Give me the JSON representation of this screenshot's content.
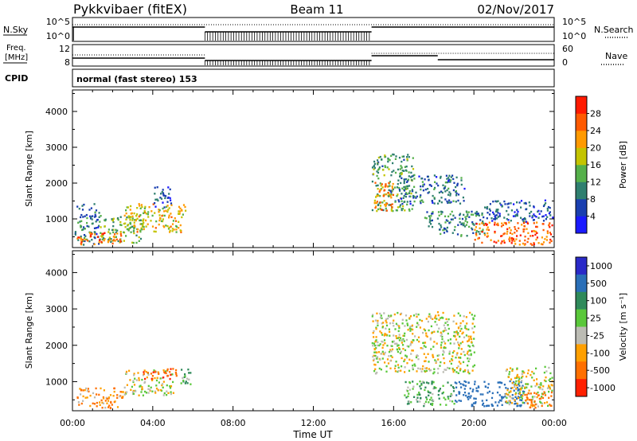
{
  "header": {
    "station": "Pykkvibaer (fitEX)",
    "beam": "Beam 11",
    "date": "02/Nov/2017"
  },
  "strip_labels": {
    "nsky": "N.Sky",
    "nsky_ticks": [
      "10^5",
      "10^0"
    ],
    "nsearch": "N.Search",
    "nsearch_ticks": [
      "10^5",
      "10^0"
    ],
    "freq": "Freq.",
    "freq_unit": "[MHz]",
    "freq_ticks": [
      "12",
      "8"
    ],
    "nave": "Nave",
    "nave_ticks": [
      "60",
      "0"
    ],
    "cpid": "CPID",
    "cpid_text": "normal (fast stereo) 153"
  },
  "x_axis": {
    "label": "Time UT",
    "ticks": [
      "00:00",
      "04:00",
      "08:00",
      "12:00",
      "16:00",
      "20:00",
      "00:00"
    ],
    "range_hours": [
      0,
      24
    ]
  },
  "panels": [
    {
      "id": "power",
      "ylabel": "Slant Range [km]",
      "yticks": [
        "1000",
        "2000",
        "3000",
        "4000"
      ],
      "ylim": [
        200,
        4600
      ],
      "colorbar_label": "Power [dB]",
      "colorbar_ticks": [
        "4",
        "8",
        "12",
        "16",
        "20",
        "24",
        "28"
      ],
      "colors": [
        "#1a1aff",
        "#1a3fb0",
        "#2f7f6f",
        "#55b04a",
        "#c4c400",
        "#ff9a00",
        "#ff5a00",
        "#ff1a00"
      ]
    },
    {
      "id": "velocity",
      "ylabel": "Slant Range [km]",
      "yticks": [
        "1000",
        "2000",
        "3000",
        "4000"
      ],
      "ylim": [
        200,
        4600
      ],
      "colorbar_label": "Velocity [m s⁻¹]",
      "colorbar_ticks": [
        "1000",
        "500",
        "100",
        "25",
        "-25",
        "-100",
        "-500",
        "-1000"
      ],
      "colors": [
        "#2a2ac8",
        "#2a6fb8",
        "#2f8a5a",
        "#5ac83a",
        "#bcbcb4",
        "#ffa000",
        "#ff7000",
        "#ff2000"
      ]
    }
  ],
  "chart_data": {
    "type": "heatmap",
    "x_unit": "hours UT",
    "y_unit": "km",
    "gap_hours": [
      6.6,
      14.9
    ],
    "power_regions": [
      {
        "x0": 0.1,
        "x1": 1.3,
        "y0": 250,
        "y1": 1400,
        "value_db": 10
      },
      {
        "x0": 1.3,
        "x1": 3.5,
        "y0": 300,
        "y1": 1100,
        "value_db": 16
      },
      {
        "x0": 2.5,
        "x1": 5.6,
        "y0": 600,
        "y1": 1400,
        "value_db": 20
      },
      {
        "x0": 4.0,
        "x1": 4.9,
        "y0": 1300,
        "y1": 1900,
        "value_db": 8
      },
      {
        "x0": 0.2,
        "x1": 2.5,
        "y0": 250,
        "y1": 600,
        "value_db": 26
      },
      {
        "x0": 14.9,
        "x1": 17.0,
        "y0": 1200,
        "y1": 2800,
        "value_db": 14
      },
      {
        "x0": 15.0,
        "x1": 16.0,
        "y0": 1200,
        "y1": 2000,
        "value_db": 24
      },
      {
        "x0": 16.2,
        "x1": 19.5,
        "y0": 1400,
        "y1": 2200,
        "value_db": 10
      },
      {
        "x0": 17.5,
        "x1": 20.5,
        "y0": 500,
        "y1": 1200,
        "value_db": 12
      },
      {
        "x0": 20.0,
        "x1": 23.9,
        "y0": 250,
        "y1": 900,
        "value_db": 26
      },
      {
        "x0": 20.5,
        "x1": 23.9,
        "y0": 900,
        "y1": 1500,
        "value_db": 8
      }
    ],
    "velocity_regions": [
      {
        "x0": 0.1,
        "x1": 2.5,
        "y0": 250,
        "y1": 800,
        "value_ms": -100
      },
      {
        "x0": 2.5,
        "x1": 5.0,
        "y0": 600,
        "y1": 1300,
        "value_ms": 0
      },
      {
        "x0": 3.5,
        "x1": 5.2,
        "y0": 1050,
        "y1": 1350,
        "value_ms": -500
      },
      {
        "x0": 5.3,
        "x1": 5.9,
        "y0": 900,
        "y1": 1400,
        "value_ms": 100
      },
      {
        "x0": 14.9,
        "x1": 20.0,
        "y0": 1200,
        "y1": 2900,
        "value_ms": 0
      },
      {
        "x0": 16.5,
        "x1": 19.0,
        "y0": 300,
        "y1": 1000,
        "value_ms": 100
      },
      {
        "x0": 19.0,
        "x1": 22.5,
        "y0": 300,
        "y1": 1000,
        "value_ms": 800
      },
      {
        "x0": 21.5,
        "x1": 23.9,
        "y0": 300,
        "y1": 1400,
        "value_ms": 0
      },
      {
        "x0": 22.5,
        "x1": 23.9,
        "y0": 250,
        "y1": 700,
        "value_ms": -300
      }
    ]
  }
}
